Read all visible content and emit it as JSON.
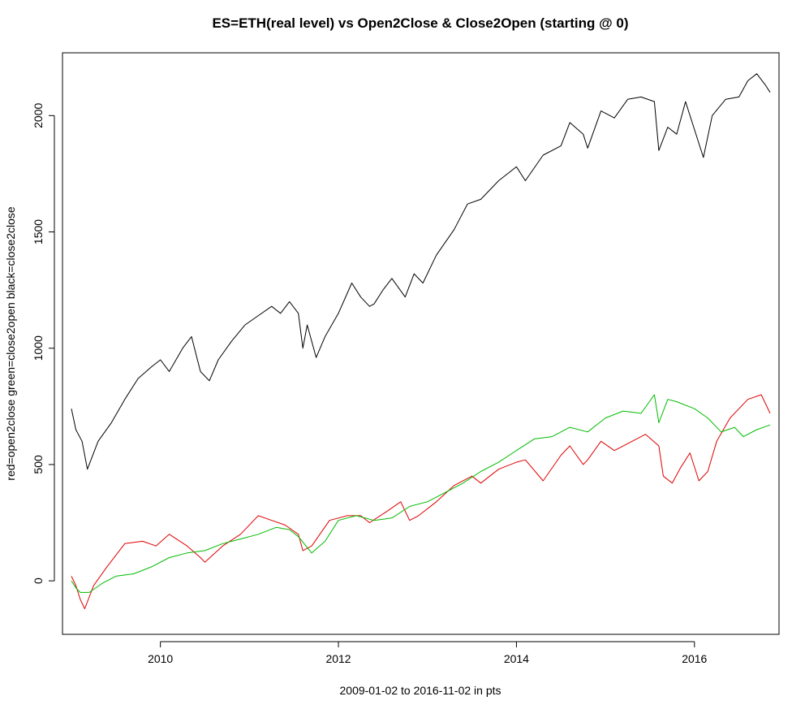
{
  "chart_data": {
    "type": "line",
    "title": "ES=ETH(real level) vs Open2Close & Close2Open (starting @ 0)",
    "xlabel": "2009-01-02 to 2016-11-02   in pts",
    "ylabel": "red=open2close   green=close2open  black=close2close",
    "xlim": [
      2008.9,
      2016.95
    ],
    "ylim": [
      -230,
      2270
    ],
    "x_ticks": [
      2010,
      2012,
      2014,
      2016
    ],
    "y_ticks": [
      0,
      500,
      1000,
      1500,
      2000
    ],
    "grid": false,
    "series": [
      {
        "name": "close2close",
        "color": "#000000",
        "x": [
          2009.0,
          2009.05,
          2009.12,
          2009.18,
          2009.3,
          2009.45,
          2009.6,
          2009.75,
          2009.9,
          2010.0,
          2010.1,
          2010.25,
          2010.35,
          2010.45,
          2010.55,
          2010.65,
          2010.8,
          2010.95,
          2011.1,
          2011.25,
          2011.35,
          2011.45,
          2011.55,
          2011.6,
          2011.65,
          2011.75,
          2011.85,
          2012.0,
          2012.15,
          2012.25,
          2012.35,
          2012.4,
          2012.5,
          2012.6,
          2012.75,
          2012.85,
          2012.95,
          2013.1,
          2013.3,
          2013.45,
          2013.6,
          2013.8,
          2014.0,
          2014.1,
          2014.3,
          2014.5,
          2014.6,
          2014.75,
          2014.8,
          2014.95,
          2015.1,
          2015.25,
          2015.4,
          2015.55,
          2015.6,
          2015.7,
          2015.8,
          2015.9,
          2016.0,
          2016.1,
          2016.2,
          2016.35,
          2016.5,
          2016.6,
          2016.7,
          2016.8,
          2016.85
        ],
        "values": [
          740,
          650,
          600,
          480,
          600,
          680,
          780,
          870,
          920,
          950,
          900,
          1000,
          1050,
          900,
          860,
          950,
          1030,
          1100,
          1140,
          1180,
          1150,
          1200,
          1150,
          1000,
          1100,
          960,
          1050,
          1150,
          1280,
          1220,
          1180,
          1190,
          1250,
          1300,
          1220,
          1320,
          1280,
          1400,
          1510,
          1620,
          1640,
          1720,
          1780,
          1720,
          1830,
          1870,
          1970,
          1920,
          1860,
          2020,
          1990,
          2070,
          2080,
          2060,
          1850,
          1950,
          1920,
          2060,
          1940,
          1820,
          2000,
          2070,
          2080,
          2150,
          2180,
          2130,
          2100
        ]
      },
      {
        "name": "open2close",
        "color": "#dd0000",
        "x": [
          2009.0,
          2009.05,
          2009.1,
          2009.15,
          2009.25,
          2009.4,
          2009.6,
          2009.8,
          2009.95,
          2010.1,
          2010.3,
          2010.45,
          2010.5,
          2010.7,
          2010.9,
          2011.1,
          2011.25,
          2011.4,
          2011.55,
          2011.6,
          2011.7,
          2011.9,
          2012.1,
          2012.25,
          2012.35,
          2012.55,
          2012.7,
          2012.8,
          2012.9,
          2013.1,
          2013.3,
          2013.5,
          2013.6,
          2013.8,
          2014.0,
          2014.1,
          2014.3,
          2014.5,
          2014.6,
          2014.75,
          2014.8,
          2014.95,
          2015.1,
          2015.3,
          2015.45,
          2015.6,
          2015.65,
          2015.75,
          2015.85,
          2015.95,
          2016.05,
          2016.15,
          2016.25,
          2016.4,
          2016.6,
          2016.75,
          2016.85
        ],
        "values": [
          20,
          -20,
          -80,
          -120,
          -20,
          60,
          160,
          170,
          150,
          200,
          150,
          100,
          80,
          150,
          200,
          280,
          260,
          240,
          200,
          130,
          150,
          260,
          280,
          280,
          250,
          300,
          340,
          260,
          280,
          340,
          410,
          450,
          420,
          480,
          510,
          520,
          430,
          540,
          580,
          500,
          520,
          600,
          560,
          600,
          630,
          580,
          450,
          420,
          490,
          550,
          430,
          470,
          600,
          700,
          780,
          800,
          720
        ]
      },
      {
        "name": "close2open",
        "color": "#00bb00",
        "x": [
          2009.0,
          2009.05,
          2009.1,
          2009.2,
          2009.35,
          2009.5,
          2009.7,
          2009.9,
          2010.1,
          2010.3,
          2010.5,
          2010.7,
          2010.9,
          2011.1,
          2011.3,
          2011.45,
          2011.55,
          2011.7,
          2011.85,
          2012.0,
          2012.2,
          2012.4,
          2012.6,
          2012.8,
          2013.0,
          2013.2,
          2013.4,
          2013.6,
          2013.8,
          2014.0,
          2014.2,
          2014.4,
          2014.6,
          2014.8,
          2015.0,
          2015.2,
          2015.4,
          2015.55,
          2015.6,
          2015.7,
          2015.8,
          2016.0,
          2016.15,
          2016.3,
          2016.45,
          2016.55,
          2016.7,
          2016.85
        ],
        "values": [
          0,
          -30,
          -50,
          -50,
          -10,
          20,
          30,
          60,
          100,
          120,
          130,
          160,
          180,
          200,
          230,
          220,
          190,
          120,
          170,
          260,
          280,
          260,
          270,
          320,
          340,
          380,
          420,
          470,
          510,
          560,
          610,
          620,
          660,
          640,
          700,
          730,
          720,
          800,
          680,
          780,
          770,
          740,
          700,
          640,
          660,
          620,
          650,
          670
        ]
      }
    ]
  }
}
